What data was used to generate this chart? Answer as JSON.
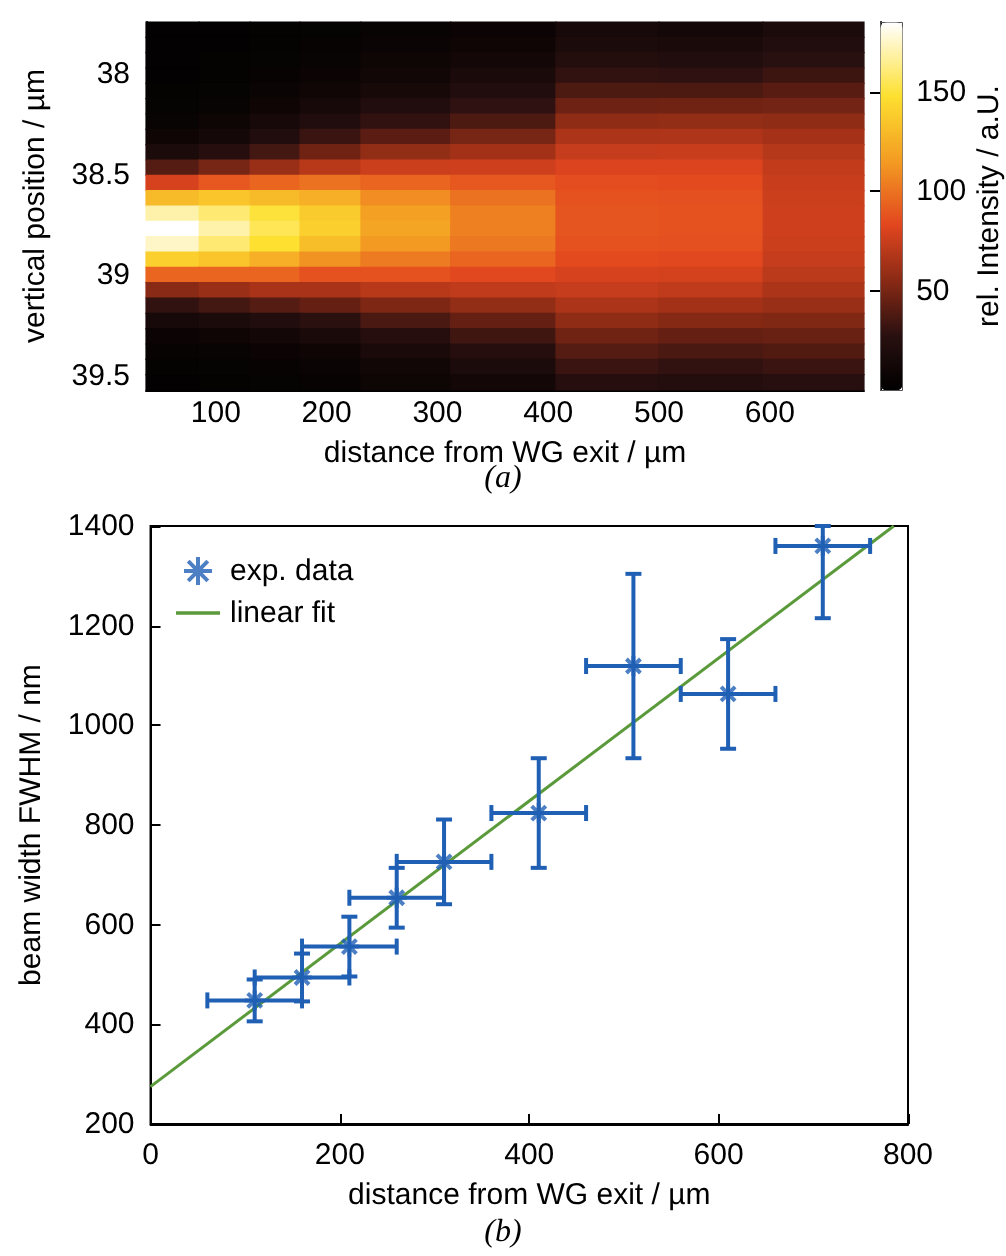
{
  "chart_data": [
    {
      "type": "heatmap",
      "xlabel": "distance from WG exit / µm",
      "ylabel": "vertical position / µm",
      "clabel": "rel. Intensity / a.U.",
      "annotations": [
        "(a)"
      ],
      "x": [
        60,
        110,
        152,
        200,
        262,
        362,
        452,
        548,
        640
      ],
      "xlim": [
        37,
        685
      ],
      "xticks": [
        100,
        200,
        300,
        400,
        500,
        600
      ],
      "ylim": [
        39.57,
        37.74
      ],
      "yticks": [
        38,
        38.5,
        39,
        39.5
      ],
      "clim": [
        0,
        185
      ],
      "cticks": [
        50,
        100,
        150
      ],
      "cells": [
        [
          2,
          2,
          3,
          4,
          6,
          8,
          15,
          14,
          18
        ],
        [
          2,
          2,
          3,
          5,
          7,
          10,
          18,
          17,
          22
        ],
        [
          2,
          3,
          4,
          6,
          9,
          13,
          23,
          22,
          27
        ],
        [
          2,
          3,
          5,
          8,
          12,
          17,
          30,
          29,
          33
        ],
        [
          3,
          4,
          7,
          11,
          16,
          22,
          38,
          38,
          41
        ],
        [
          4,
          6,
          10,
          15,
          22,
          29,
          47,
          48,
          49
        ],
        [
          6,
          9,
          15,
          22,
          30,
          38,
          57,
          58,
          57
        ],
        [
          10,
          14,
          22,
          32,
          42,
          50,
          66,
          67,
          64
        ],
        [
          18,
          25,
          35,
          48,
          58,
          63,
          74,
          75,
          69
        ],
        [
          40,
          50,
          60,
          70,
          76,
          77,
          81,
          81,
          73
        ],
        [
          80,
          90,
          95,
          100,
          95,
          90,
          86,
          85,
          75
        ],
        [
          130,
          135,
          130,
          125,
          110,
          100,
          88,
          87,
          76
        ],
        [
          170,
          160,
          150,
          138,
          118,
          105,
          89,
          88,
          77
        ],
        [
          185,
          170,
          155,
          140,
          120,
          105,
          89,
          88,
          77
        ],
        [
          175,
          160,
          148,
          132,
          115,
          102,
          88,
          87,
          76
        ],
        [
          140,
          135,
          125,
          112,
          103,
          95,
          85,
          84,
          74
        ],
        [
          95,
          95,
          95,
          88,
          88,
          84,
          80,
          79,
          71
        ],
        [
          55,
          60,
          65,
          65,
          70,
          72,
          74,
          72,
          66
        ],
        [
          30,
          35,
          40,
          45,
          52,
          58,
          66,
          63,
          60
        ],
        [
          15,
          18,
          22,
          28,
          37,
          45,
          57,
          54,
          53
        ],
        [
          8,
          10,
          13,
          17,
          25,
          34,
          48,
          45,
          46
        ],
        [
          5,
          6,
          8,
          10,
          17,
          25,
          40,
          37,
          39
        ],
        [
          3,
          4,
          5,
          7,
          12,
          18,
          32,
          30,
          32
        ],
        [
          2,
          3,
          4,
          5,
          9,
          13,
          25,
          23,
          26
        ]
      ]
    },
    {
      "type": "scatter",
      "xlabel": "distance from WG exit / µm",
      "ylabel": "beam width FWHM / nm",
      "annotations": [
        "(b)"
      ],
      "xlim": [
        0,
        800
      ],
      "xticks": [
        0,
        200,
        400,
        600,
        800
      ],
      "ylim": [
        200,
        1400
      ],
      "yticks": [
        200,
        400,
        600,
        800,
        1000,
        1200,
        1400
      ],
      "legend": "top left",
      "series": [
        {
          "type": "scatter",
          "name": "exp. data",
          "color": "#1f5fb4",
          "marker": "cross",
          "x": [
            110,
            160,
            210,
            260,
            310,
            410,
            510,
            610,
            710
          ],
          "values": [
            448,
            494,
            556,
            654,
            726,
            824,
            1119,
            1063,
            1360
          ],
          "xerrors": [
            50,
            50,
            50,
            50,
            50,
            50,
            50,
            50,
            50
          ],
          "errors": [
            42,
            48,
            60,
            60,
            85,
            110,
            185,
            110,
            [
              1215,
              1400
            ]
          ]
        },
        {
          "type": "line",
          "name": "linear fit",
          "color": "#5a9a3a",
          "x": [
            0,
            785
          ],
          "values": [
            275,
            1400
          ]
        }
      ]
    }
  ]
}
